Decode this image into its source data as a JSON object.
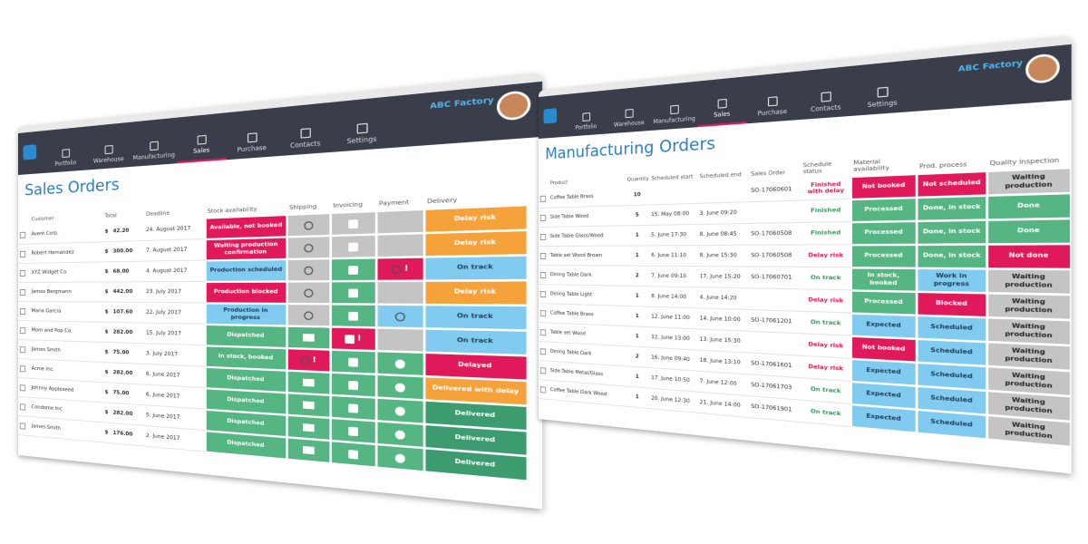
{
  "navigation": {
    "brand": "ABC Factory",
    "items": [
      "Portfolio",
      "Warehouse",
      "Manufacturing",
      "Sales",
      "Purchase",
      "Contacts",
      "Settings"
    ]
  },
  "sales_orders": {
    "title": "Sales Orders",
    "columns": [
      "Customer",
      "Total",
      "Deadline",
      "Stock availability",
      "Shipping",
      "Invoicing",
      "Payment",
      "Delivery"
    ],
    "currency": "$",
    "rows": [
      {
        "customer": "Avent Corp.",
        "total": "42.20",
        "deadline": "24. August 2017",
        "stock": "Available, not booked",
        "delivery": "Delay risk"
      },
      {
        "customer": "Robert Hernandez",
        "total": "300.00",
        "deadline": "7. August 2017",
        "stock": "Waiting production confirmation",
        "delivery": "Delay risk"
      },
      {
        "customer": "XYZ Widget Co.",
        "total": "68.00",
        "deadline": "4. August 2017",
        "stock": "Production scheduled",
        "payment": "!",
        "delivery": "On track"
      },
      {
        "customer": "James Bergmann",
        "total": "442.00",
        "deadline": "23. July 2017",
        "stock": "Production blocked",
        "delivery": "Delay risk"
      },
      {
        "customer": "Maria Garcia",
        "total": "107.60",
        "deadline": "22. July 2017",
        "stock": "Production in progress",
        "delivery": "On track"
      },
      {
        "customer": "Mom and Pop Co.",
        "total": "282.00",
        "deadline": "15. July 2017",
        "stock": "Dispatched",
        "invoicing": "!",
        "delivery": "On track"
      },
      {
        "customer": "James Smith",
        "total": "75.00",
        "deadline": "3. July 2017",
        "stock": "In stock, booked",
        "shipping": "!",
        "delivery": "Delayed"
      },
      {
        "customer": "Acme Inc.",
        "total": "282.00",
        "deadline": "6. June 2017",
        "stock": "Dispatched",
        "delivery": "Delivered with delay"
      },
      {
        "customer": "Johnny Appleseed",
        "total": "75.00",
        "deadline": "6. June 2017",
        "stock": "Dispatched",
        "delivery": "Delivered"
      },
      {
        "customer": "Condome Inc",
        "total": "282.00",
        "deadline": "5. June 2017",
        "stock": "Dispatched",
        "delivery": "Delivered"
      },
      {
        "customer": "James Smith",
        "total": "176.00",
        "deadline": "2. June 2017",
        "stock": "Dispatched",
        "delivery": "Delivered"
      }
    ]
  },
  "manufacturing_orders": {
    "title": "Manufacturing Orders",
    "columns": [
      "Product",
      "Quantity",
      "Scheduled start",
      "Scheduled end",
      "Sales Order",
      "Schedule status",
      "Material availability",
      "Prod. process",
      "Quality inspection"
    ],
    "rows": [
      {
        "product": "Coffee Table Brass",
        "quantity": "10",
        "sales_order": "SO-17060601",
        "status": "Finished with delay",
        "material": "Not booked",
        "process": "Not scheduled",
        "quality": "Waiting production"
      },
      {
        "product": "Side Table Wood",
        "quantity": "5",
        "start": "15. May 08:00",
        "end": "3. June 09:20",
        "status": "Finished",
        "material": "Processed",
        "process": "Done, in stock",
        "quality": "Done"
      },
      {
        "product": "Side Table Glass/Wood",
        "quantity": "1",
        "start": "5. June 17:30",
        "end": "8. June 08:45",
        "sales_order": "SO-17060508",
        "status": "Finished",
        "material": "Processed",
        "process": "Done, in stock",
        "quality": "Done"
      },
      {
        "product": "Table set Wood Brown",
        "quantity": "1",
        "start": "6. June 11:10",
        "end": "8. June 15:30",
        "sales_order": "SO-17060508",
        "status": "Delay risk",
        "material": "Processed",
        "process": "Done, in stock",
        "quality": "Not done"
      },
      {
        "product": "Dining Table Dark",
        "quantity": "2",
        "start": "7. June 09:10",
        "end": "17. June 15:20",
        "sales_order": "SO-17060701",
        "status": "On track",
        "material": "In stock, booked",
        "process": "Work in progress",
        "quality": "Waiting production"
      },
      {
        "product": "Dining Table Light",
        "quantity": "1",
        "start": "8. June 14:00",
        "end": "4. June 14:20",
        "status": "Delay risk",
        "material": "Processed",
        "process": "Blocked",
        "quality": "Waiting production"
      },
      {
        "product": "Coffee Table Brass",
        "quantity": "1",
        "start": "12. June 11:00",
        "end": "14. June 10:00",
        "sales_order": "SO-17061201",
        "status": "On track",
        "material": "Expected",
        "process": "Scheduled",
        "quality": "Waiting production"
      },
      {
        "product": "Table set Wood",
        "quantity": "1",
        "start": "12. June 13:00",
        "end": "13. June 15:30",
        "status": "Delay risk",
        "material": "Not booked",
        "process": "Scheduled",
        "quality": "Waiting production"
      },
      {
        "product": "Dining Table Dark",
        "quantity": "2",
        "start": "16. June 09:40",
        "end": "18. June 13:10",
        "sales_order": "SO-17061601",
        "status": "Delay risk",
        "material": "Expected",
        "process": "Scheduled",
        "quality": "Waiting production"
      },
      {
        "product": "Side Table Metal/Glass",
        "quantity": "1",
        "start": "17. June 10:50",
        "end": "7. June 12:00",
        "sales_order": "SO-17061703",
        "status": "On track",
        "material": "Expected",
        "process": "Scheduled",
        "quality": "Waiting production"
      },
      {
        "product": "Coffee Table Dark Wood",
        "quantity": "1",
        "start": "20. June 12:30",
        "end": "21. June 14:00",
        "sales_order": "SO-17061901",
        "status": "On track",
        "material": "Expected",
        "process": "Scheduled",
        "quality": "Waiting production"
      }
    ]
  }
}
